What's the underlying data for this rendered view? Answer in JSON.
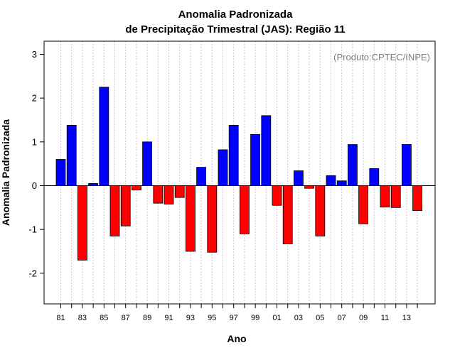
{
  "chart_data": {
    "type": "bar",
    "title": [
      "Anomalia Padronizada",
      "de Precipitação Trimestral (JAS): Região 11"
    ],
    "xlabel": "Ano",
    "ylabel": "Anomalia Padronizada",
    "annotation": "(Produto:CPTEC/INPE)",
    "ylim": [
      -2.7,
      3.3
    ],
    "yticks": [
      -2,
      -1,
      0,
      1,
      2,
      3
    ],
    "ytick_labels": [
      "-2",
      "-1",
      "0",
      "1",
      "2",
      "3"
    ],
    "categories": [
      "81",
      "82",
      "83",
      "84",
      "85",
      "86",
      "87",
      "88",
      "89",
      "90",
      "91",
      "92",
      "93",
      "94",
      "95",
      "96",
      "97",
      "98",
      "99",
      "00",
      "01",
      "02",
      "03",
      "04",
      "05",
      "06",
      "07",
      "08",
      "09",
      "10",
      "11",
      "12",
      "13",
      "14"
    ],
    "xtick_labels": [
      "81",
      "83",
      "85",
      "87",
      "89",
      "91",
      "93",
      "95",
      "97",
      "99",
      "01",
      "03",
      "05",
      "07",
      "09",
      "11",
      "13"
    ],
    "values": [
      0.6,
      1.38,
      -1.7,
      0.05,
      2.25,
      -1.15,
      -0.92,
      -0.1,
      1.0,
      -0.4,
      -0.42,
      -0.27,
      -1.5,
      0.42,
      -1.52,
      0.82,
      1.38,
      -1.1,
      1.17,
      1.6,
      -0.45,
      -1.33,
      0.34,
      -0.06,
      -1.15,
      0.23,
      0.11,
      0.94,
      -0.87,
      0.39,
      -0.49,
      -0.5,
      0.94,
      -0.57
    ],
    "colors": {
      "positive": "#0000ff",
      "negative": "#ff0000",
      "grid": "#c8c8c8",
      "zero_line": "#000000"
    },
    "grid": true
  }
}
